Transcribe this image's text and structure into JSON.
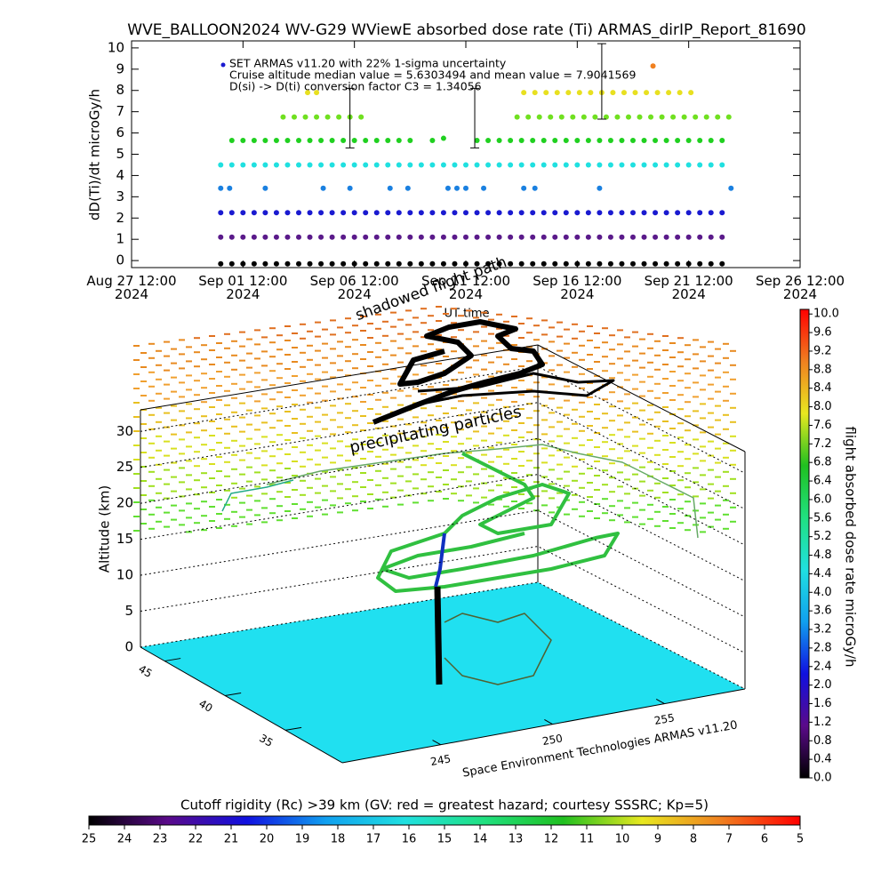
{
  "chart_data": [
    {
      "type": "scatter",
      "title": "WVE_BALLOON2024 WV-G29 WViewE absorbed dose rate (Ti) ARMAS_dirIP_Report_81690",
      "ylabel": "dD(Ti)/dt microGy/h",
      "xlabel": "UT time",
      "annotations": [
        "SET ARMAS v11.20 with 22% 1-sigma uncertainty",
        "Cruise altitude median value = 5.6303494 and mean value = 7.9041569",
        "D(si) -> D(ti) conversion factor C3 = 1.34056"
      ],
      "legend_color": "#1a1ad0",
      "xlim": [
        0,
        30
      ],
      "xticks": [
        {
          "value": 0,
          "label": "Aug 27 12:00 2024"
        },
        {
          "value": 5,
          "label": "Sep 01 12:00 2024"
        },
        {
          "value": 10,
          "label": "Sep 06 12:00 2024"
        },
        {
          "value": 15,
          "label": "Sep 11 12:00 2024"
        },
        {
          "value": 20,
          "label": "Sep 16 12:00 2024"
        },
        {
          "value": 25,
          "label": "Sep 21 12:00 2024"
        },
        {
          "value": 30,
          "label": "Sep 26 12:00 2024"
        }
      ],
      "ylim": [
        -0.33,
        10.33
      ],
      "yticks": [
        0,
        1,
        2,
        3,
        4,
        5,
        6,
        7,
        8,
        9,
        10
      ],
      "series": [
        {
          "color": "#000000",
          "x": [
            4.0,
            4.5,
            5.0,
            5.5,
            6.0,
            6.5,
            7.0,
            7.5,
            8.0,
            8.5,
            9.0,
            9.5,
            10.0,
            10.5,
            11.0,
            11.5,
            12.0,
            12.5,
            13.0,
            13.5,
            14.0,
            14.5,
            15.0,
            15.5,
            16.0,
            16.5,
            17.0,
            17.5,
            18.0,
            18.5,
            19.0,
            19.5,
            20.0,
            20.5,
            21.0,
            21.5,
            22.0,
            22.5,
            23.0,
            23.5,
            24.0,
            24.5,
            25.0,
            25.5,
            26.0,
            26.5
          ],
          "values": [
            -0.15,
            -0.15,
            -0.15,
            -0.15,
            -0.15,
            -0.15,
            -0.15,
            -0.15,
            -0.15,
            -0.15,
            -0.15,
            -0.15,
            -0.15,
            -0.15,
            -0.15,
            -0.15,
            -0.15,
            -0.15,
            -0.15,
            -0.15,
            -0.15,
            -0.15,
            -0.15,
            -0.15,
            -0.15,
            -0.15,
            -0.15,
            -0.15,
            -0.15,
            -0.15,
            -0.15,
            -0.15,
            -0.15,
            -0.15,
            -0.15,
            -0.15,
            -0.15,
            -0.15,
            -0.15,
            -0.15,
            -0.15,
            -0.15,
            -0.15,
            -0.15,
            -0.15,
            -0.15
          ]
        },
        {
          "color": "#5a1a8a",
          "x": [
            4.0,
            4.5,
            5.0,
            5.5,
            6.0,
            6.5,
            7.0,
            7.5,
            8.0,
            8.5,
            9.0,
            9.5,
            10.0,
            10.5,
            11.0,
            11.5,
            12.0,
            12.5,
            13.0,
            13.5,
            14.0,
            14.5,
            15.0,
            15.5,
            16.0,
            16.5,
            17.0,
            17.5,
            18.0,
            18.5,
            19.0,
            19.5,
            20.0,
            20.5,
            21.0,
            21.5,
            22.0,
            22.5,
            23.0,
            23.5,
            24.0,
            24.5,
            25.0,
            25.5,
            26.0,
            26.5
          ],
          "values": [
            1.1,
            1.1,
            1.1,
            1.1,
            1.1,
            1.1,
            1.1,
            1.1,
            1.1,
            1.1,
            1.1,
            1.1,
            1.1,
            1.1,
            1.1,
            1.1,
            1.1,
            1.1,
            1.1,
            1.1,
            1.1,
            1.1,
            1.1,
            1.1,
            1.1,
            1.1,
            1.1,
            1.1,
            1.1,
            1.1,
            1.1,
            1.1,
            1.1,
            1.1,
            1.1,
            1.1,
            1.1,
            1.1,
            1.1,
            1.1,
            1.1,
            1.1,
            1.1,
            1.1,
            1.1,
            1.1
          ]
        },
        {
          "color": "#1a1ad0",
          "x": [
            4.0,
            4.5,
            5.0,
            5.5,
            6.0,
            6.5,
            7.0,
            7.5,
            8.0,
            8.5,
            9.0,
            9.5,
            10.0,
            10.5,
            11.0,
            11.5,
            12.0,
            12.5,
            13.0,
            13.5,
            14.0,
            14.5,
            15.0,
            15.5,
            16.0,
            16.5,
            17.0,
            17.5,
            18.0,
            18.5,
            19.0,
            19.5,
            20.0,
            20.5,
            21.0,
            21.5,
            22.0,
            22.5,
            23.0,
            23.5,
            24.0,
            24.5,
            25.0,
            25.5,
            26.0,
            26.5
          ],
          "values": [
            2.25,
            2.25,
            2.25,
            2.25,
            2.25,
            2.25,
            2.25,
            2.25,
            2.25,
            2.25,
            2.25,
            2.25,
            2.25,
            2.25,
            2.25,
            2.25,
            2.25,
            2.25,
            2.25,
            2.25,
            2.25,
            2.25,
            2.25,
            2.25,
            2.25,
            2.25,
            2.25,
            2.25,
            2.25,
            2.25,
            2.25,
            2.25,
            2.25,
            2.25,
            2.25,
            2.25,
            2.25,
            2.25,
            2.25,
            2.25,
            2.25,
            2.25,
            2.25,
            2.25,
            2.25,
            2.25
          ]
        },
        {
          "color": "#1a80e0",
          "x": [
            4.0,
            4.4,
            6.0,
            8.6,
            9.8,
            11.6,
            12.4,
            14.2,
            14.6,
            15.0,
            15.8,
            17.6,
            18.1,
            21.0,
            26.9
          ],
          "values": [
            3.4,
            3.4,
            3.4,
            3.4,
            3.4,
            3.4,
            3.4,
            3.4,
            3.4,
            3.4,
            3.4,
            3.4,
            3.4,
            3.4,
            3.4
          ]
        },
        {
          "color": "#20e0e0",
          "x": [
            4.0,
            4.5,
            5.0,
            5.5,
            6.0,
            6.5,
            7.0,
            7.5,
            8.0,
            8.5,
            9.0,
            9.5,
            10.0,
            10.5,
            11.0,
            11.5,
            12.0,
            12.5,
            13.0,
            13.5,
            14.0,
            14.5,
            15.0,
            15.5,
            16.0,
            16.5,
            17.0,
            17.5,
            18.0,
            18.5,
            19.0,
            19.5,
            20.0,
            20.5,
            21.0,
            21.5,
            22.0,
            22.5,
            23.0,
            23.5,
            24.0,
            24.5,
            25.0,
            25.5,
            26.0,
            26.5
          ],
          "values": [
            4.5,
            4.5,
            4.5,
            4.5,
            4.5,
            4.5,
            4.5,
            4.5,
            4.5,
            4.5,
            4.5,
            4.5,
            4.5,
            4.5,
            4.5,
            4.5,
            4.5,
            4.5,
            4.5,
            4.5,
            4.5,
            4.5,
            4.5,
            4.5,
            4.5,
            4.5,
            4.5,
            4.5,
            4.5,
            4.5,
            4.5,
            4.5,
            4.5,
            4.5,
            4.5,
            4.5,
            4.5,
            4.5,
            4.5,
            4.5,
            4.5,
            4.5,
            4.5,
            4.5,
            4.5,
            4.5
          ]
        },
        {
          "color": "#20d020",
          "x": [
            4.5,
            5.0,
            5.5,
            6.0,
            6.5,
            7.0,
            7.5,
            8.0,
            8.5,
            9.0,
            9.5,
            10.0,
            10.5,
            11.0,
            11.5,
            12.0,
            12.5,
            13.5,
            14.0,
            15.5,
            16.0,
            16.5,
            17.0,
            17.5,
            18.0,
            18.5,
            19.0,
            19.5,
            20.0,
            20.5,
            21.0,
            21.5,
            22.0,
            22.5,
            23.0,
            23.5,
            24.0,
            24.5,
            25.0,
            25.5,
            26.0,
            26.5
          ],
          "values": [
            5.65,
            5.65,
            5.65,
            5.65,
            5.65,
            5.65,
            5.65,
            5.65,
            5.65,
            5.65,
            5.65,
            5.65,
            5.65,
            5.65,
            5.65,
            5.65,
            5.65,
            5.65,
            5.75,
            5.65,
            5.65,
            5.65,
            5.65,
            5.65,
            5.65,
            5.65,
            5.65,
            5.65,
            5.65,
            5.65,
            5.65,
            5.65,
            5.65,
            5.65,
            5.65,
            5.65,
            5.65,
            5.65,
            5.65,
            5.65,
            5.65,
            5.65
          ]
        },
        {
          "color": "#70e020",
          "x": [
            6.8,
            7.3,
            7.8,
            8.3,
            8.8,
            9.3,
            9.8,
            10.3,
            17.3,
            17.8,
            18.3,
            18.8,
            19.3,
            19.8,
            20.3,
            20.8,
            21.3,
            21.8,
            22.3,
            22.8,
            23.3,
            23.8,
            24.3,
            24.8,
            25.3,
            25.8,
            26.3,
            26.8
          ],
          "values": [
            6.75,
            6.75,
            6.75,
            6.75,
            6.75,
            6.75,
            6.75,
            6.75,
            6.75,
            6.75,
            6.75,
            6.75,
            6.75,
            6.75,
            6.75,
            6.75,
            6.75,
            6.75,
            6.75,
            6.75,
            6.75,
            6.75,
            6.75,
            6.75,
            6.75,
            6.75,
            6.75,
            6.75
          ]
        },
        {
          "color": "#e8e020",
          "x": [
            7.9,
            8.3,
            17.6,
            18.1,
            18.6,
            19.1,
            19.6,
            20.1,
            20.6,
            21.1,
            21.6,
            22.1,
            22.6,
            23.1,
            23.6,
            24.1,
            24.6,
            25.1
          ],
          "values": [
            7.9,
            7.9,
            7.9,
            7.9,
            7.9,
            7.9,
            7.9,
            7.9,
            7.9,
            7.9,
            7.9,
            7.9,
            7.9,
            7.9,
            7.9,
            7.9,
            7.9,
            7.9
          ]
        },
        {
          "color": "#f08020",
          "x": [
            23.4
          ],
          "values": [
            9.15
          ]
        }
      ],
      "error_bars": {
        "x": [
          9.8,
          15.4,
          21.1
        ],
        "low": [
          5.3,
          5.3,
          6.65
        ],
        "high": [
          8.1,
          8.1,
          10.2
        ]
      }
    },
    {
      "type": "surface3d",
      "zlabel": "Altitude (km)",
      "zlim": [
        0,
        33
      ],
      "zticks": [
        0,
        5,
        10,
        15,
        20,
        25,
        30
      ],
      "xlim": [
        240.6,
        258.6
      ],
      "xticks": [
        245,
        250,
        255
      ],
      "ylim": [
        47,
        30.3
      ],
      "yticks": [
        45,
        40,
        35
      ],
      "annotations": [
        "shadowed flight path",
        "precipitating particles"
      ],
      "credit": "Space Environment Technologies ARMAS v11.20",
      "ground_color": "#20e0f0"
    },
    {
      "type": "colorbar",
      "label": "flight absorbed dose rate microGy/h",
      "lim": [
        0,
        10.1
      ],
      "ticks": [
        {
          "value": 0,
          "label": "0.0"
        },
        0.4,
        0.8,
        1.2,
        1.6,
        {
          "value": 2,
          "label": "2.0"
        },
        2.4,
        2.8,
        3.2,
        3.6,
        {
          "value": 4,
          "label": "4.0"
        },
        4.4,
        4.8,
        5.2,
        5.6,
        {
          "value": 6,
          "label": "6.0"
        },
        6.4,
        6.8,
        7.2,
        7.6,
        {
          "value": 8,
          "label": "8.0"
        },
        8.4,
        8.8,
        9.2,
        9.6,
        {
          "value": 10,
          "label": "10.0"
        }
      ],
      "colors": [
        "#000000",
        "#5a0a8a",
        "#1010e0",
        "#10a0f0",
        "#20e0e0",
        "#20e080",
        "#20c020",
        "#e8e820",
        "#f08020",
        "#ff0000"
      ]
    },
    {
      "type": "colorbar",
      "label": "Cutoff rigidity (Rc) >39 km (GV: red = greatest hazard; courtesy SSSRC; Kp=5)",
      "lim": [
        25,
        5
      ],
      "ticks": [
        25,
        24,
        23,
        22,
        21,
        20,
        19,
        18,
        17,
        16,
        15,
        14,
        13,
        12,
        11,
        10,
        9,
        8,
        7,
        6,
        5
      ],
      "colors": [
        "#000000",
        "#5a0a8a",
        "#1010e0",
        "#10a0f0",
        "#20e0e0",
        "#20e080",
        "#20c020",
        "#e8e820",
        "#f08020",
        "#ff0000"
      ]
    }
  ]
}
